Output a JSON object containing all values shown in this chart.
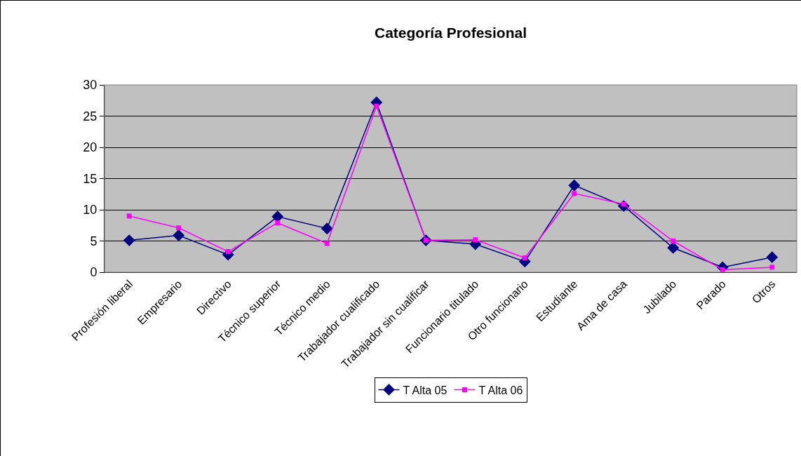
{
  "chart_data": {
    "type": "line",
    "title": "Categoría Profesional",
    "categories": [
      "Profesión liberal",
      "Empresario",
      "Directivo",
      "Técnico superior",
      "Técnico medio",
      "Trabajador cualificado",
      "Trabajador sin cualificar",
      "Funcionario titulado",
      "Otro funcionario",
      "Estudiante",
      "Ama de casa",
      "Jubilado",
      "Parado",
      "Otros"
    ],
    "series": [
      {
        "name": "T Alta 05",
        "color": "#000080",
        "marker": "diamond",
        "values": [
          5.1,
          5.9,
          2.8,
          8.9,
          7.0,
          27.2,
          5.1,
          4.5,
          1.7,
          13.9,
          10.6,
          3.9,
          0.8,
          2.4
        ]
      },
      {
        "name": "T Alta 06",
        "color": "#ff00ff",
        "marker": "square",
        "values": [
          9.0,
          7.1,
          3.3,
          7.9,
          4.6,
          26.6,
          5.1,
          5.2,
          2.3,
          12.6,
          10.9,
          5.0,
          0.4,
          0.8
        ]
      }
    ],
    "ylim": [
      0,
      30
    ],
    "yticks": [
      0,
      5,
      10,
      15,
      20,
      25,
      30
    ],
    "grid": "y",
    "legend": "bottom"
  }
}
